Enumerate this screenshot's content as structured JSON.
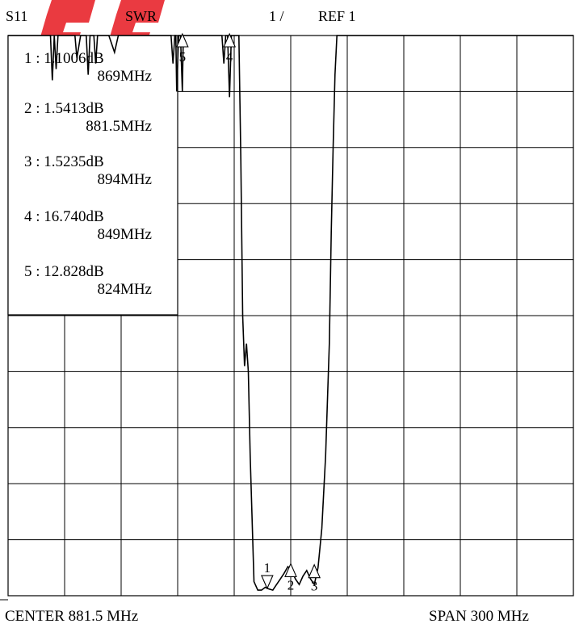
{
  "header": {
    "param": "S11",
    "format": "SWR",
    "scale": "1 /",
    "ref": "REF 1"
  },
  "footer": {
    "center": "CENTER  881.5 MHz",
    "span": "SPAN  300  MHz"
  },
  "colors": {
    "trace": "#000000",
    "grid": "#000000",
    "watermark": "#e8252c"
  },
  "markers": [
    {
      "id": "1",
      "value": "1 : 1.1006dB",
      "freq": "869MHz"
    },
    {
      "id": "2",
      "value": "2 : 1.5413dB",
      "freq": "881.5MHz"
    },
    {
      "id": "3",
      "value": "3 : 1.5235dB",
      "freq": "894MHz"
    },
    {
      "id": "4",
      "value": "4 : 16.740dB",
      "freq": "849MHz"
    },
    {
      "id": "5",
      "value": "5 : 12.828dB",
      "freq": "824MHz"
    }
  ],
  "chart_data": {
    "type": "line",
    "x_unit": "MHz",
    "xlim": [
      731.5,
      1031.5
    ],
    "ylim": [
      1,
      11
    ],
    "grid": true,
    "series": [
      {
        "x": [
          731.5,
          754,
          755,
          756,
          757,
          758,
          767,
          768,
          770,
          773,
          774,
          775,
          777,
          778,
          779,
          781,
          785,
          788,
          790,
          795,
          800,
          810,
          818,
          819,
          820,
          820.5,
          821,
          822,
          823,
          824,
          824.5,
          825,
          826,
          828,
          840,
          845,
          846,
          847,
          848,
          849,
          850,
          852,
          853,
          854,
          855,
          856,
          857,
          858,
          859,
          860,
          862,
          864,
          866,
          868,
          870,
          872,
          874,
          876,
          878,
          880,
          882,
          884,
          886,
          888,
          890,
          892,
          894,
          896,
          898,
          900,
          902,
          903,
          904,
          905,
          906,
          907,
          908,
          909,
          910,
          912,
          1031.5
        ],
        "y": [
          11,
          11,
          10.2,
          11,
          10.4,
          11,
          11,
          10.6,
          11,
          11,
          10.3,
          11,
          11,
          10.5,
          11,
          11,
          11,
          10.7,
          11,
          11,
          11,
          11,
          11,
          10.5,
          11,
          11,
          10.0,
          11,
          11,
          10.0,
          11,
          11,
          11,
          11,
          11,
          11,
          10.5,
          11,
          11,
          9.9,
          11,
          11,
          11,
          11,
          8.8,
          6.0,
          5.1,
          5.5,
          5.0,
          3.5,
          1.25,
          1.1,
          1.1,
          1.15,
          1.12,
          1.1,
          1.2,
          1.3,
          1.4,
          1.52,
          1.45,
          1.3,
          1.2,
          1.35,
          1.45,
          1.3,
          1.2,
          1.5,
          2.2,
          3.5,
          5.5,
          7.5,
          9.0,
          10.3,
          11,
          11,
          11,
          11,
          11,
          11,
          11
        ]
      }
    ],
    "marker_points": [
      {
        "id": "1",
        "x": 869,
        "y": 1.1006
      },
      {
        "id": "2",
        "x": 881.5,
        "y": 1.5413
      },
      {
        "id": "3",
        "x": 894,
        "y": 1.5235
      },
      {
        "id": "4",
        "x": 849,
        "y": 16.74
      },
      {
        "id": "5",
        "x": 824,
        "y": 12.828
      }
    ]
  }
}
